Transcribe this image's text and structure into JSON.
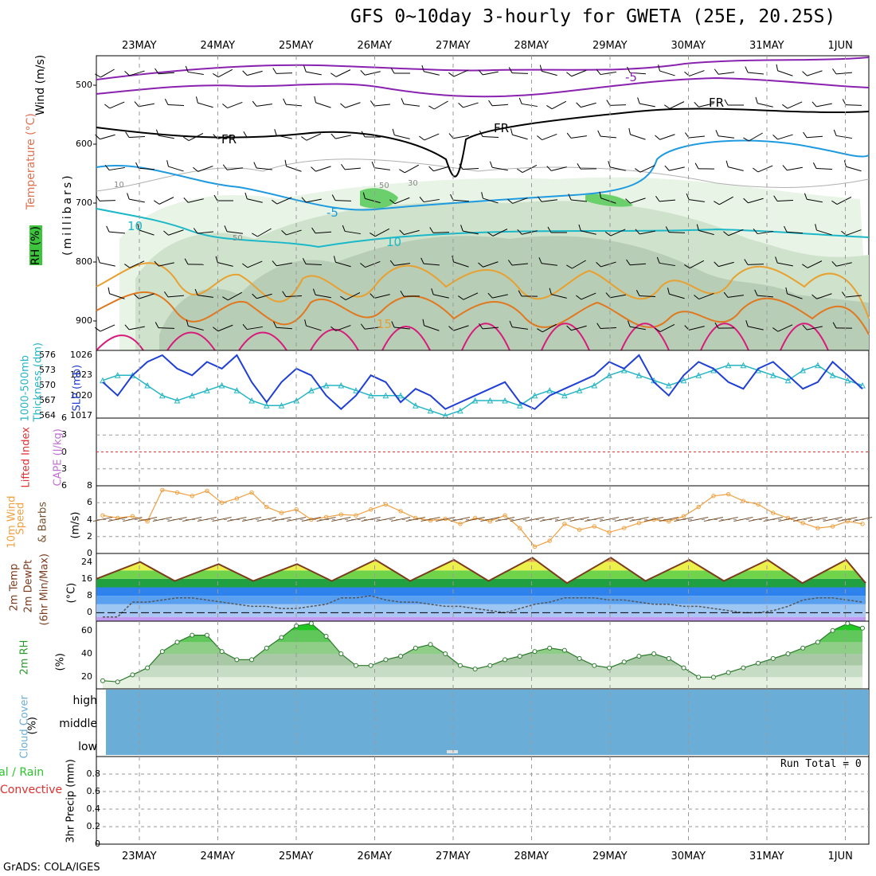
{
  "title": "GFS 0~10day 3-hourly for GWETA (25E, 20.25S)",
  "credit": "GrADS: COLA/IGES",
  "run_total": "Run Total = 0",
  "dates": [
    "23MAY",
    "24MAY",
    "25MAY",
    "26MAY",
    "27MAY",
    "28MAY",
    "29MAY",
    "30MAY",
    "31MAY",
    "1JUN"
  ],
  "colors": {
    "slp": "#1f3fd6",
    "thickness": "#25b5c4",
    "wind_speed": "#f0a040",
    "barbs": "#7a5230",
    "cloud": "#6aaed8",
    "grid": "#9a9a9a",
    "temp_curve": "#7a3b1e"
  },
  "panel_labels": {
    "upper_wind": "Wind (m/s)",
    "upper_temp": "Temperature (°C)",
    "upper_rh": "RH (%)",
    "upper_mb": "(millibars)",
    "slp": "SLP (mb)",
    "thick1": "1000-500mb",
    "thick2": "Thickness (dm)",
    "li": "Lifted Index",
    "cape": "CAPE (J/kg)",
    "w10_1": "10m Wind",
    "w10_2": "Speed",
    "w10_3": "& Barbs",
    "w10_4": "(m/s)",
    "t2_1": "2m Temp",
    "t2_2": "2m DewPt",
    "t2_3": "(6hr Min/Max)",
    "t2_4": "(°C)",
    "rh2_1": "2m RH",
    "rh2_2": "(%)",
    "cc_1": "Cloud Cover",
    "cc_2": "(%)",
    "pr_1": "Total / Rain",
    "pr_2": "Convective",
    "pr_3": "3hr Precip (mm)"
  },
  "cloud_levels": [
    "high",
    "middle",
    "low"
  ],
  "contour_labels": {
    "fr": "FR",
    "m5": "-5",
    "m10": "10",
    "p10": "10",
    "p15": "15",
    "rh10": "10",
    "rh30": "30",
    "rh50": "50"
  },
  "chart_data": [
    {
      "type": "contour",
      "title": "Upper-air cross-section",
      "ylabel": "(millibars)",
      "yticks": [
        500,
        600,
        700,
        800,
        900
      ],
      "ylim": [
        950,
        450
      ],
      "freezing_level_mb": [
        580,
        585,
        590,
        590,
        588,
        580,
        575,
        570,
        565,
        560
      ],
      "rh_contours": [
        10,
        30,
        50
      ]
    },
    {
      "type": "line",
      "title": "SLP & 1000-500mb Thickness",
      "series": [
        {
          "name": "SLP (mb)",
          "yticks": [
            1017,
            1020,
            1023,
            1026
          ],
          "values": [
            1022,
            1020,
            1023,
            1025,
            1026,
            1024,
            1023,
            1025,
            1024,
            1026,
            1022,
            1019,
            1022,
            1024,
            1023,
            1020,
            1018,
            1020,
            1023,
            1022,
            1019,
            1021,
            1020,
            1018,
            1019,
            1020,
            1021,
            1022,
            1019,
            1018,
            1020,
            1021,
            1022,
            1023,
            1025,
            1024,
            1026,
            1022,
            1020,
            1023,
            1025,
            1024,
            1022,
            1021,
            1024,
            1025,
            1023,
            1021,
            1022,
            1025,
            1023,
            1021
          ]
        },
        {
          "name": "Thickness (dm)",
          "yticks": [
            564,
            567,
            570,
            573,
            576
          ],
          "values": [
            571,
            572,
            572,
            570,
            568,
            567,
            568,
            569,
            570,
            569,
            567,
            566,
            566,
            567,
            569,
            570,
            570,
            569,
            568,
            568,
            568,
            566,
            565,
            564,
            565,
            567,
            567,
            567,
            566,
            568,
            569,
            568,
            569,
            570,
            572,
            573,
            572,
            571,
            570,
            571,
            572,
            573,
            574,
            574,
            573,
            572,
            571,
            573,
            574,
            572,
            571,
            570
          ]
        }
      ]
    },
    {
      "type": "line",
      "title": "Lifted Index & CAPE",
      "yticks": [
        -6,
        -3,
        0,
        3,
        6
      ],
      "ylim": [
        6,
        -6
      ],
      "values": []
    },
    {
      "type": "line",
      "title": "10m Wind Speed",
      "yticks": [
        0,
        2,
        4,
        6,
        8
      ],
      "ylim": [
        0,
        8
      ],
      "values": [
        4.5,
        4.2,
        4.4,
        3.8,
        7.5,
        7.2,
        6.8,
        7.4,
        6.0,
        6.5,
        7.2,
        5.5,
        4.8,
        5.2,
        4.0,
        4.3,
        4.6,
        4.5,
        5.2,
        5.8,
        5.0,
        4.2,
        3.9,
        4.1,
        3.5,
        4.2,
        3.8,
        4.5,
        3.0,
        0.8,
        1.5,
        3.5,
        2.8,
        3.2,
        2.5,
        3.0,
        3.6,
        4.0,
        3.8,
        4.4,
        5.5,
        6.8,
        7.0,
        6.2,
        5.8,
        4.8,
        4.2,
        3.6,
        3.0,
        3.2,
        3.8,
        3.5
      ]
    },
    {
      "type": "area",
      "title": "2m Temperature & DewPoint",
      "yticks": [
        0,
        8,
        16,
        24
      ],
      "ylim": [
        -4,
        28
      ],
      "series": [
        {
          "name": "2m Temp",
          "peaks": [
            24,
            23,
            23,
            25,
            25,
            26,
            26,
            25,
            25,
            25
          ],
          "troughs": [
            16,
            15,
            15,
            15,
            15,
            15,
            14,
            15,
            15,
            14
          ]
        },
        {
          "name": "2m DewPt",
          "values": [
            -2,
            -2,
            5,
            5,
            6,
            7,
            7,
            6,
            5,
            4,
            3,
            3,
            2,
            2,
            3,
            4,
            7,
            7,
            8,
            6,
            5,
            5,
            4,
            3,
            3,
            2,
            1,
            0,
            2,
            4,
            5,
            7,
            7,
            7,
            6,
            6,
            5,
            4,
            4,
            3,
            3,
            2,
            1,
            0,
            0,
            1,
            3,
            6,
            7,
            7,
            6,
            5
          ]
        }
      ]
    },
    {
      "type": "area",
      "title": "2m RH",
      "yticks": [
        20,
        40,
        60
      ],
      "ylim": [
        10,
        68
      ],
      "values": [
        17,
        16,
        22,
        28,
        42,
        50,
        56,
        56,
        42,
        35,
        35,
        45,
        54,
        64,
        66,
        55,
        40,
        30,
        30,
        35,
        38,
        45,
        48,
        40,
        30,
        27,
        30,
        35,
        38,
        42,
        45,
        43,
        36,
        30,
        28,
        33,
        38,
        40,
        36,
        28,
        20,
        20,
        24,
        28,
        32,
        36,
        40,
        45,
        50,
        60,
        66,
        62
      ]
    },
    {
      "type": "area",
      "title": "Cloud Cover",
      "categories": [
        "high",
        "middle",
        "low"
      ],
      "values": [
        100,
        100,
        100
      ]
    },
    {
      "type": "bar",
      "title": "3hr Precip (mm)",
      "yticks": [
        0,
        0.2,
        0.4,
        0.6,
        0.8
      ],
      "ylim": [
        0,
        1.0
      ],
      "values": []
    }
  ]
}
